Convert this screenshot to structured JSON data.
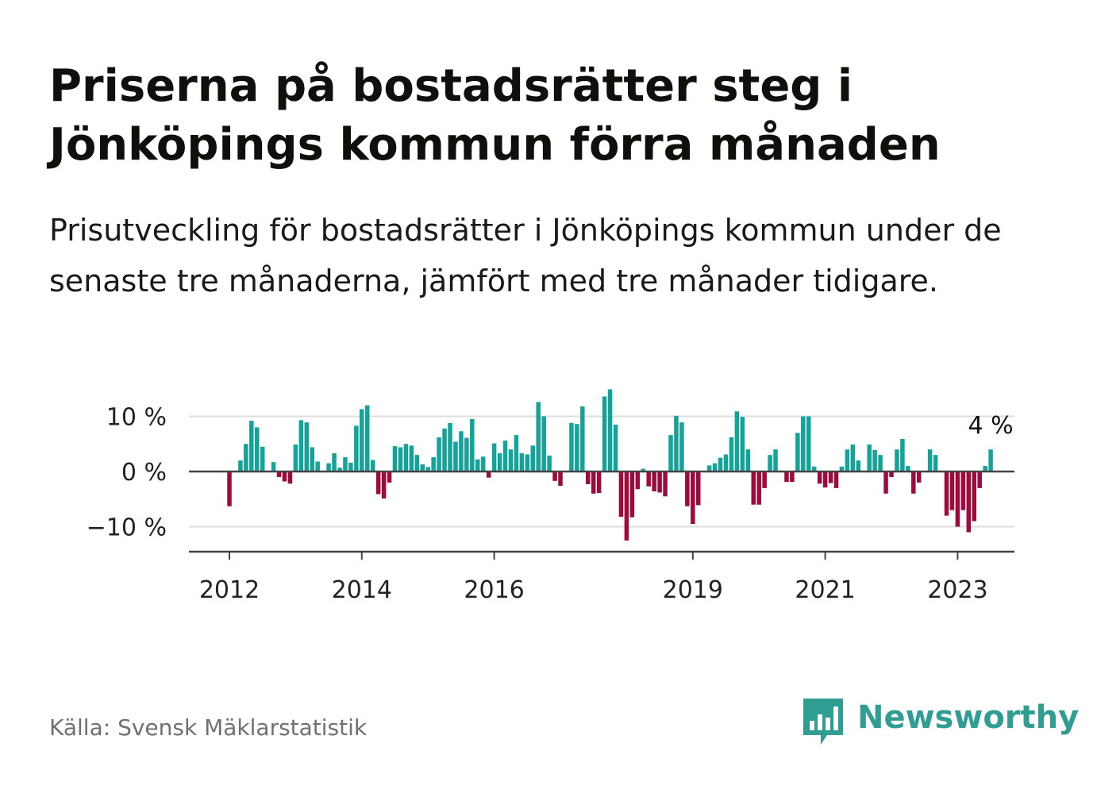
{
  "title": "Priserna på bostadsrätter steg i Jönköpings kommun förra månaden",
  "subtitle": "Prisutveckling för bostadsrätter i Jönköpings kommun under de senaste tre månaderna, jämfört med tre månader tidigare.",
  "source": "Källa: Svensk Mäklarstatistik",
  "brand": {
    "name": "Newsworthy",
    "logo_icon": "bar-chart-speech-bubble-icon",
    "color": "#2f9d92"
  },
  "colors": {
    "positive": "#14a398",
    "negative": "#9e0a3c",
    "grid": "#dddddd",
    "axis": "#444444"
  },
  "chart_data": {
    "type": "bar",
    "x_start": "2012-01",
    "frequency": "monthly",
    "ylim": [
      -15,
      15
    ],
    "yticks": [
      -10,
      0,
      10
    ],
    "ytick_labels": [
      "−10 %",
      "0 %",
      "10 %"
    ],
    "xtick_labels": [
      "2012",
      "2014",
      "2016",
      "2019",
      "2021",
      "2023"
    ],
    "xtick_months": [
      "2012-01",
      "2014-01",
      "2016-01",
      "2019-01",
      "2021-01",
      "2023-01"
    ],
    "annotation": {
      "text": "4 %",
      "target": "last"
    },
    "values": [
      -6.3,
      null,
      2.0,
      5.0,
      9.2,
      8.0,
      4.5,
      null,
      1.7,
      -1.0,
      -1.8,
      -2.2,
      4.9,
      9.3,
      8.9,
      4.4,
      1.8,
      null,
      1.5,
      3.3,
      0.7,
      2.6,
      1.6,
      8.3,
      11.3,
      12.0,
      2.1,
      -4.1,
      -4.9,
      -2.0,
      4.6,
      4.4,
      5.0,
      4.7,
      3.0,
      1.3,
      0.8,
      2.6,
      6.2,
      7.8,
      8.8,
      5.4,
      7.3,
      6.1,
      9.5,
      2.2,
      2.7,
      -1.1,
      5.1,
      3.3,
      5.6,
      4.0,
      6.6,
      3.3,
      3.1,
      4.7,
      12.6,
      10.0,
      2.9,
      -1.7,
      -2.6,
      null,
      8.8,
      8.6,
      11.8,
      -2.3,
      -4.0,
      -3.9,
      13.6,
      14.9,
      8.5,
      -8.2,
      -12.5,
      -8.3,
      -3.2,
      0.5,
      -2.7,
      -3.6,
      -3.8,
      -4.5,
      6.6,
      10.1,
      8.9,
      -6.3,
      -9.5,
      -6.1,
      null,
      1.1,
      1.5,
      2.5,
      3.1,
      6.2,
      10.9,
      9.9,
      4.0,
      -6.0,
      -6.0,
      -3.0,
      3.0,
      4.0,
      null,
      -1.9,
      -1.9,
      7.0,
      10.0,
      10.0,
      0.9,
      -2.2,
      -2.9,
      -2.1,
      -3.0,
      0.9,
      4.0,
      4.9,
      2.0,
      null,
      4.9,
      3.9,
      3.0,
      -4.0,
      -1.0,
      4.0,
      5.9,
      1.0,
      -4.0,
      -2.0,
      null,
      4.0,
      3.0,
      null,
      -8.0,
      -7.0,
      -10.0,
      -7.0,
      -11.0,
      -9.0,
      -3.0,
      1.0,
      4.0
    ]
  }
}
